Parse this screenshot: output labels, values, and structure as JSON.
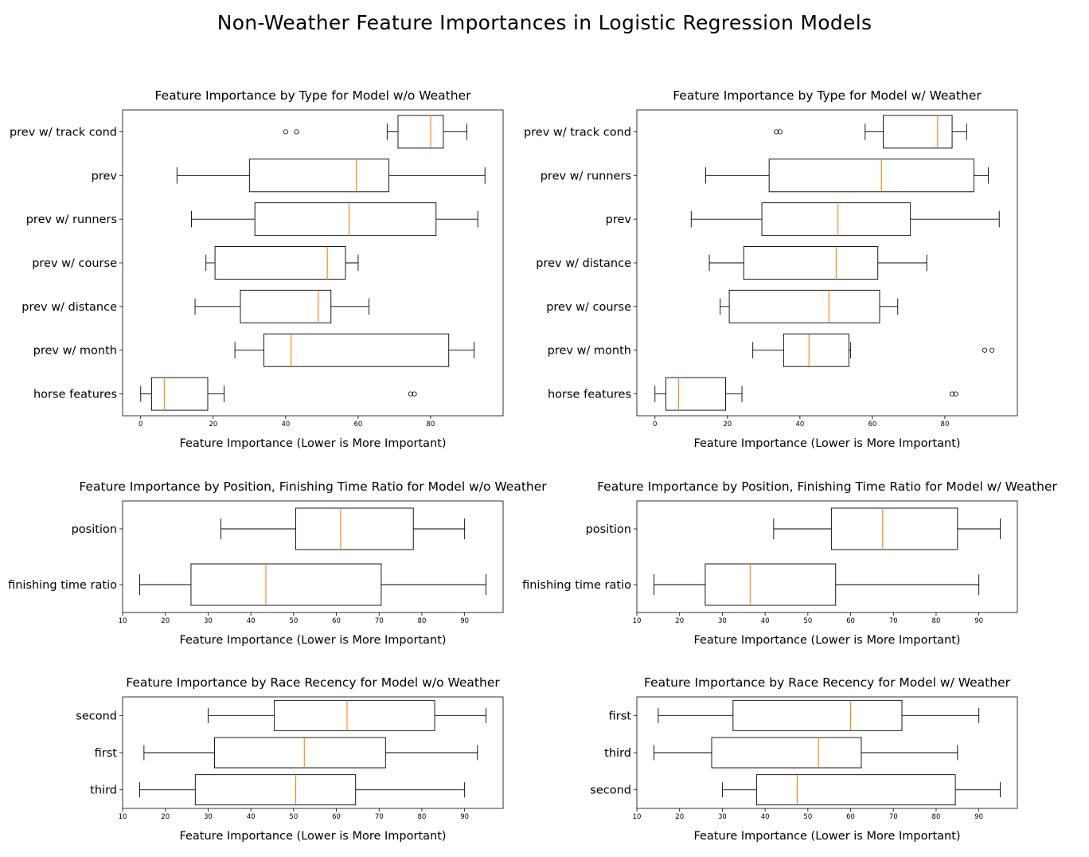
{
  "figure": {
    "suptitle": "Non-Weather Feature Importances in Logistic Regression Models"
  },
  "colors": {
    "box_stroke": "#000000",
    "median": "#ff7f0e",
    "axes_spine": "#000000",
    "background": "#ffffff"
  },
  "chart_data": [
    {
      "type": "boxplot",
      "orientation": "horizontal",
      "title": "Feature Importance by Type for Model w/o Weather",
      "xlabel": "Feature Importance (Lower is More Important)",
      "xlim": [
        -5,
        100
      ],
      "xticks": [
        0,
        20,
        40,
        60,
        80
      ],
      "categories": [
        "prev w/ track cond",
        "prev",
        "prev w/ runners",
        "prev w/ course",
        "prev w/ distance",
        "prev w/ month",
        "horse features"
      ],
      "boxes": [
        {
          "label": "prev w/ track cond",
          "whislo": 68,
          "q1": 71,
          "med": 80,
          "q3": 83.5,
          "whishi": 90,
          "fliers": [
            40,
            43
          ]
        },
        {
          "label": "prev",
          "whislo": 10,
          "q1": 30,
          "med": 59.5,
          "q3": 68.5,
          "whishi": 95,
          "fliers": []
        },
        {
          "label": "prev w/ runners",
          "whislo": 14,
          "q1": 31.5,
          "med": 57.5,
          "q3": 81.5,
          "whishi": 93,
          "fliers": []
        },
        {
          "label": "prev w/ course",
          "whislo": 18,
          "q1": 20.5,
          "med": 51.5,
          "q3": 56.5,
          "whishi": 60,
          "fliers": []
        },
        {
          "label": "prev w/ distance",
          "whislo": 15,
          "q1": 27.5,
          "med": 49,
          "q3": 52.5,
          "whishi": 63,
          "fliers": []
        },
        {
          "label": "prev w/ month",
          "whislo": 26,
          "q1": 34,
          "med": 41.5,
          "q3": 85,
          "whishi": 92,
          "fliers": []
        },
        {
          "label": "horse features",
          "whislo": 0,
          "q1": 3,
          "med": 6.5,
          "q3": 18.5,
          "whishi": 23,
          "fliers": [
            74.5,
            75.5
          ]
        }
      ]
    },
    {
      "type": "boxplot",
      "orientation": "horizontal",
      "title": "Feature Importance by Type for Model w/ Weather",
      "xlabel": "Feature Importance (Lower is More Important)",
      "xlim": [
        -5,
        100
      ],
      "xticks": [
        0,
        20,
        40,
        60,
        80
      ],
      "categories": [
        "prev w/ track cond",
        "prev w/ runners",
        "prev",
        "prev w/ distance",
        "prev w/ course",
        "prev w/ month",
        "horse features"
      ],
      "boxes": [
        {
          "label": "prev w/ track cond",
          "whislo": 58,
          "q1": 63,
          "med": 78,
          "q3": 82,
          "whishi": 86,
          "fliers": [
            33.5,
            34.5
          ]
        },
        {
          "label": "prev w/ runners",
          "whislo": 14,
          "q1": 31.5,
          "med": 62.5,
          "q3": 88,
          "whishi": 92,
          "fliers": []
        },
        {
          "label": "prev",
          "whislo": 10,
          "q1": 29.5,
          "med": 50.5,
          "q3": 70.5,
          "whishi": 95,
          "fliers": []
        },
        {
          "label": "prev w/ distance",
          "whislo": 15,
          "q1": 24.5,
          "med": 50,
          "q3": 61.5,
          "whishi": 75,
          "fliers": []
        },
        {
          "label": "prev w/ course",
          "whislo": 18,
          "q1": 20.5,
          "med": 48,
          "q3": 62,
          "whishi": 67,
          "fliers": []
        },
        {
          "label": "prev w/ month",
          "whislo": 27,
          "q1": 35.5,
          "med": 42.5,
          "q3": 53.5,
          "whishi": 54,
          "fliers": [
            91,
            93
          ]
        },
        {
          "label": "horse features",
          "whislo": 0,
          "q1": 3,
          "med": 6.5,
          "q3": 19.5,
          "whishi": 24,
          "fliers": [
            82,
            83
          ]
        }
      ]
    },
    {
      "type": "boxplot",
      "orientation": "horizontal",
      "title": "Feature Importance by Position, Finishing Time Ratio for Model w/o Weather",
      "xlabel": "Feature Importance (Lower is More Important)",
      "xlim": [
        10,
        99
      ],
      "xticks": [
        10,
        20,
        30,
        40,
        50,
        60,
        70,
        80,
        90
      ],
      "categories": [
        "position",
        "finishing time ratio"
      ],
      "boxes": [
        {
          "label": "position",
          "whislo": 33,
          "q1": 50.5,
          "med": 61,
          "q3": 78,
          "whishi": 90,
          "fliers": []
        },
        {
          "label": "finishing time ratio",
          "whislo": 14,
          "q1": 26,
          "med": 43.5,
          "q3": 70.5,
          "whishi": 95,
          "fliers": []
        }
      ]
    },
    {
      "type": "boxplot",
      "orientation": "horizontal",
      "title": "Feature Importance by Position, Finishing Time Ratio for Model w/ Weather",
      "xlabel": "Feature Importance (Lower is More Important)",
      "xlim": [
        10,
        99
      ],
      "xticks": [
        10,
        20,
        30,
        40,
        50,
        60,
        70,
        80,
        90
      ],
      "categories": [
        "position",
        "finishing time ratio"
      ],
      "boxes": [
        {
          "label": "position",
          "whislo": 42,
          "q1": 55.5,
          "med": 67.5,
          "q3": 85,
          "whishi": 95,
          "fliers": []
        },
        {
          "label": "finishing time ratio",
          "whislo": 14,
          "q1": 26,
          "med": 36.5,
          "q3": 56.5,
          "whishi": 90,
          "fliers": []
        }
      ]
    },
    {
      "type": "boxplot",
      "orientation": "horizontal",
      "title": "Feature Importance by Race Recency for Model w/o Weather",
      "xlabel": "Feature Importance (Lower is More Important)",
      "xlim": [
        10,
        99
      ],
      "xticks": [
        10,
        20,
        30,
        40,
        50,
        60,
        70,
        80,
        90
      ],
      "categories": [
        "second",
        "first",
        "third"
      ],
      "boxes": [
        {
          "label": "second",
          "whislo": 30,
          "q1": 45.5,
          "med": 62.5,
          "q3": 83,
          "whishi": 95,
          "fliers": []
        },
        {
          "label": "first",
          "whislo": 15,
          "q1": 31.5,
          "med": 52.5,
          "q3": 71.5,
          "whishi": 93,
          "fliers": []
        },
        {
          "label": "third",
          "whislo": 14,
          "q1": 27,
          "med": 50.5,
          "q3": 64.5,
          "whishi": 90,
          "fliers": []
        }
      ]
    },
    {
      "type": "boxplot",
      "orientation": "horizontal",
      "title": "Feature Importance by Race Recency for Model w/ Weather",
      "xlabel": "Feature Importance (Lower is More Important)",
      "xlim": [
        10,
        99
      ],
      "xticks": [
        10,
        20,
        30,
        40,
        50,
        60,
        70,
        80,
        90
      ],
      "categories": [
        "first",
        "third",
        "second"
      ],
      "boxes": [
        {
          "label": "first",
          "whislo": 15,
          "q1": 32.5,
          "med": 60,
          "q3": 72,
          "whishi": 90,
          "fliers": []
        },
        {
          "label": "third",
          "whislo": 14,
          "q1": 27.5,
          "med": 52.5,
          "q3": 62.5,
          "whishi": 85,
          "fliers": []
        },
        {
          "label": "second",
          "whislo": 30,
          "q1": 38,
          "med": 47.5,
          "q3": 84.5,
          "whishi": 95,
          "fliers": []
        }
      ]
    }
  ]
}
